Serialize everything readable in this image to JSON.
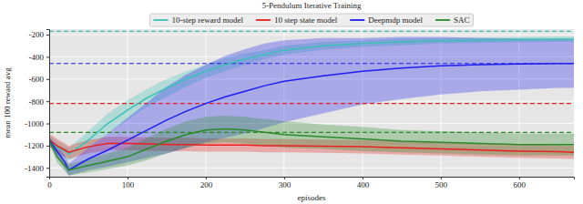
{
  "chart_data": {
    "type": "line",
    "title": "5-Pendulum Iterative Training",
    "x_label": "episodes",
    "y_label": "mean 100 reward avg",
    "x": [
      0,
      10,
      20,
      25,
      50,
      75,
      100,
      125,
      150,
      175,
      200,
      225,
      250,
      275,
      300,
      350,
      400,
      450,
      500,
      550,
      600,
      650,
      670
    ],
    "xlim": [
      0,
      670
    ],
    "xticks": [
      0,
      100,
      200,
      300,
      400,
      500,
      600
    ],
    "ylim": [
      -1480,
      -150
    ],
    "yticks": [
      -1400,
      -1200,
      -1000,
      -800,
      -600,
      -400,
      -200
    ],
    "grid": true,
    "legend": "top",
    "series": [
      {
        "name": "10-step reward model",
        "color": "#3cc0b4",
        "values": [
          -1150,
          -1220,
          -1250,
          -1280,
          -1150,
          -1000,
          -880,
          -770,
          -680,
          -600,
          -530,
          -470,
          -420,
          -380,
          -340,
          -300,
          -280,
          -265,
          -255,
          -250,
          -245,
          -240,
          -240
        ],
        "upper": [
          -1100,
          -1160,
          -1190,
          -1220,
          -1070,
          -910,
          -790,
          -690,
          -600,
          -530,
          -470,
          -410,
          -370,
          -340,
          -300,
          -265,
          -250,
          -235,
          -230,
          -225,
          -220,
          -215,
          -215
        ],
        "lower": [
          -1200,
          -1280,
          -1310,
          -1340,
          -1230,
          -1090,
          -970,
          -850,
          -760,
          -670,
          -590,
          -530,
          -470,
          -420,
          -380,
          -335,
          -310,
          -295,
          -280,
          -275,
          -270,
          -265,
          -265
        ],
        "reference_line": -170
      },
      {
        "name": "10 step state model",
        "color": "#e8201c",
        "values": [
          -1150,
          -1200,
          -1240,
          -1260,
          -1210,
          -1180,
          -1180,
          -1185,
          -1190,
          -1190,
          -1195,
          -1195,
          -1195,
          -1200,
          -1200,
          -1205,
          -1210,
          -1220,
          -1230,
          -1240,
          -1250,
          -1255,
          -1260
        ],
        "upper": [
          -1090,
          -1140,
          -1180,
          -1200,
          -1150,
          -1120,
          -1120,
          -1125,
          -1130,
          -1130,
          -1135,
          -1135,
          -1135,
          -1140,
          -1140,
          -1145,
          -1150,
          -1160,
          -1170,
          -1180,
          -1190,
          -1195,
          -1200
        ],
        "lower": [
          -1210,
          -1260,
          -1300,
          -1320,
          -1270,
          -1240,
          -1240,
          -1245,
          -1250,
          -1250,
          -1255,
          -1255,
          -1255,
          -1260,
          -1260,
          -1265,
          -1270,
          -1280,
          -1290,
          -1300,
          -1310,
          -1315,
          -1320
        ],
        "reference_line": -820
      },
      {
        "name": "Deepmdp model",
        "color": "#1e1ef0",
        "values": [
          -1150,
          -1250,
          -1350,
          -1420,
          -1320,
          -1240,
          -1150,
          -1060,
          -970,
          -890,
          -820,
          -760,
          -710,
          -660,
          -620,
          -570,
          -530,
          -500,
          -480,
          -470,
          -465,
          -460,
          -460
        ],
        "upper": [
          -1120,
          -1200,
          -1290,
          -1360,
          -1220,
          -1090,
          -950,
          -810,
          -670,
          -560,
          -470,
          -390,
          -330,
          -280,
          -250,
          -230,
          -230,
          -220,
          -220,
          -230,
          -235,
          -240,
          -240
        ],
        "lower": [
          -1180,
          -1300,
          -1410,
          -1470,
          -1420,
          -1390,
          -1350,
          -1310,
          -1270,
          -1220,
          -1170,
          -1130,
          -1090,
          -1040,
          -990,
          -910,
          -830,
          -780,
          -740,
          -710,
          -695,
          -680,
          -680
        ],
        "reference_line": -460
      },
      {
        "name": "SAC",
        "color": "#2a8a2a",
        "values": [
          -1150,
          -1300,
          -1380,
          -1420,
          -1380,
          -1340,
          -1300,
          -1230,
          -1160,
          -1100,
          -1060,
          -1050,
          -1060,
          -1080,
          -1100,
          -1120,
          -1140,
          -1160,
          -1170,
          -1180,
          -1190,
          -1190,
          -1190
        ],
        "upper": [
          -1120,
          -1250,
          -1330,
          -1370,
          -1320,
          -1270,
          -1220,
          -1130,
          -1050,
          -980,
          -940,
          -930,
          -940,
          -960,
          -980,
          -1010,
          -1030,
          -1060,
          -1070,
          -1080,
          -1090,
          -1090,
          -1090
        ],
        "lower": [
          -1180,
          -1350,
          -1430,
          -1470,
          -1440,
          -1410,
          -1380,
          -1330,
          -1270,
          -1220,
          -1180,
          -1170,
          -1180,
          -1200,
          -1220,
          -1230,
          -1250,
          -1260,
          -1270,
          -1280,
          -1290,
          -1290,
          -1290
        ],
        "reference_line": -1080
      }
    ]
  }
}
